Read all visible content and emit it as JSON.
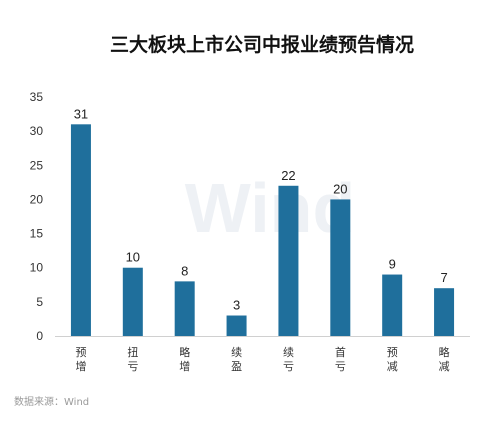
{
  "chart_data": {
    "type": "bar",
    "title": "三大板块上市公司中报业绩预告情况",
    "categories": [
      [
        "预",
        "增"
      ],
      [
        "扭",
        "亏"
      ],
      [
        "略",
        "增"
      ],
      [
        "续",
        "盈"
      ],
      [
        "续",
        "亏"
      ],
      [
        "首",
        "亏"
      ],
      [
        "预",
        "减"
      ],
      [
        "略",
        "减"
      ]
    ],
    "values": [
      31,
      10,
      8,
      3,
      22,
      20,
      9,
      7
    ],
    "ylim": [
      0,
      35
    ],
    "yticks": [
      "0",
      "5",
      "10",
      "15",
      "20",
      "25",
      "30",
      "35"
    ],
    "xlabel": "",
    "ylabel": "",
    "bar_color": "#1f6f9c",
    "grid": false,
    "data_labels": true,
    "watermark": "Wind",
    "source": "数据来源：Wind"
  }
}
